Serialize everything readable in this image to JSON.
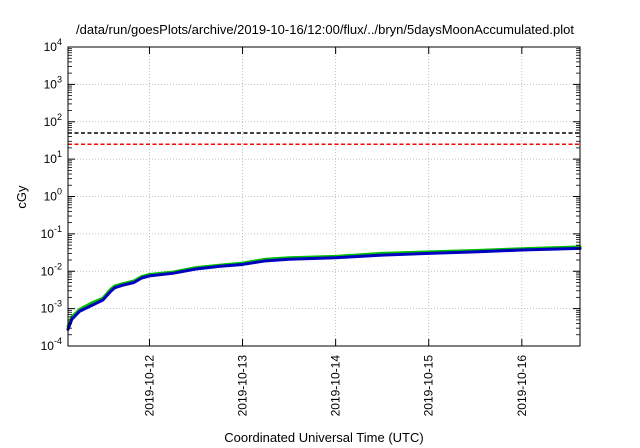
{
  "chart_data": {
    "type": "line",
    "title": "/data/run/goesPlots/archive/2019-10-16/12:00/flux/../bryn/5daysMoonAccumulated.plot",
    "xlabel": "Coordinated Universal Time (UTC)",
    "ylabel": "cGy",
    "y_scale": "log",
    "ylim": [
      0.0001,
      10000
    ],
    "xlim": [
      "2019-10-11 03:00",
      "2019-10-16 15:00"
    ],
    "x_ticks": [
      "2019-10-12",
      "2019-10-13",
      "2019-10-14",
      "2019-10-15",
      "2019-10-16"
    ],
    "y_ticks": [
      {
        "base": "10",
        "exp": "4",
        "value": 10000
      },
      {
        "base": "10",
        "exp": "3",
        "value": 1000
      },
      {
        "base": "10",
        "exp": "2",
        "value": 100
      },
      {
        "base": "10",
        "exp": "1",
        "value": 10
      },
      {
        "base": "10",
        "exp": "0",
        "value": 1
      },
      {
        "base": "10",
        "exp": "-1",
        "value": 0.1
      },
      {
        "base": "10",
        "exp": "-2",
        "value": 0.01
      },
      {
        "base": "10",
        "exp": "-3",
        "value": 0.001
      },
      {
        "base": "10",
        "exp": "-4",
        "value": 0.0001
      }
    ],
    "grid": true,
    "thresholds": [
      {
        "value": 50,
        "color": "#000000",
        "style": "dashed"
      },
      {
        "value": 25,
        "color": "#ff0000",
        "style": "dashed"
      }
    ],
    "series": [
      {
        "color": "#00c000",
        "x": [
          "2019-10-11 03:00",
          "2019-10-11 04:00",
          "2019-10-11 06:00",
          "2019-10-11 09:00",
          "2019-10-11 12:00",
          "2019-10-11 14:00",
          "2019-10-11 15:00",
          "2019-10-11 17:00",
          "2019-10-11 20:00",
          "2019-10-11 22:00",
          "2019-10-12 00:00",
          "2019-10-12 06:00",
          "2019-10-12 12:00",
          "2019-10-12 18:00",
          "2019-10-13 00:00",
          "2019-10-13 06:00",
          "2019-10-13 12:00",
          "2019-10-14 00:00",
          "2019-10-14 12:00",
          "2019-10-15 00:00",
          "2019-10-15 12:00",
          "2019-10-16 00:00",
          "2019-10-16 15:00"
        ],
        "values": [
          0.00033,
          0.0006,
          0.00095,
          0.0014,
          0.0019,
          0.0033,
          0.004,
          0.0046,
          0.0055,
          0.0072,
          0.0082,
          0.0095,
          0.0125,
          0.0145,
          0.0165,
          0.021,
          0.023,
          0.025,
          0.03,
          0.033,
          0.036,
          0.04,
          0.045
        ]
      },
      {
        "color": "#0000c0",
        "x": [
          "2019-10-11 03:00",
          "2019-10-11 04:00",
          "2019-10-11 06:00",
          "2019-10-11 09:00",
          "2019-10-11 12:00",
          "2019-10-11 14:00",
          "2019-10-11 15:00",
          "2019-10-11 17:00",
          "2019-10-11 20:00",
          "2019-10-11 22:00",
          "2019-10-12 00:00",
          "2019-10-12 06:00",
          "2019-10-12 12:00",
          "2019-10-12 18:00",
          "2019-10-13 00:00",
          "2019-10-13 06:00",
          "2019-10-13 12:00",
          "2019-10-14 00:00",
          "2019-10-14 12:00",
          "2019-10-15 00:00",
          "2019-10-15 12:00",
          "2019-10-16 00:00",
          "2019-10-16 15:00"
        ],
        "values": [
          0.00028,
          0.00052,
          0.00085,
          0.0012,
          0.0017,
          0.0029,
          0.0036,
          0.0042,
          0.005,
          0.0066,
          0.0075,
          0.0088,
          0.0115,
          0.0135,
          0.0152,
          0.019,
          0.021,
          0.023,
          0.027,
          0.03,
          0.033,
          0.037,
          0.041
        ]
      }
    ]
  }
}
